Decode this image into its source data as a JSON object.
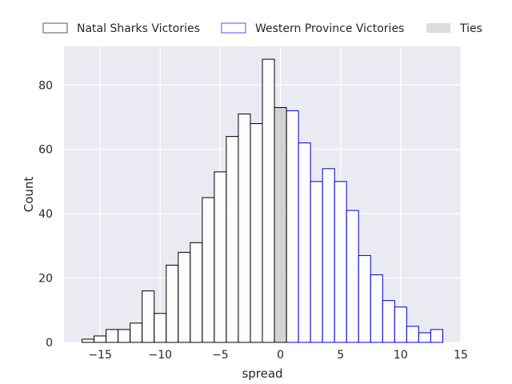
{
  "chart_data": {
    "type": "histogram",
    "xlabel": "spread",
    "ylabel": "Count",
    "xlim": [
      -18,
      15
    ],
    "ylim": [
      0,
      92
    ],
    "x_ticks": [
      -15,
      -10,
      -5,
      0,
      5,
      10,
      15
    ],
    "y_ticks": [
      0,
      20,
      40,
      60,
      80
    ],
    "x_tick_labels": [
      "−15",
      "−10",
      "−5",
      "0",
      "5",
      "10",
      "15"
    ],
    "y_tick_labels": [
      "0",
      "20",
      "40",
      "60",
      "80"
    ],
    "bin_width": 1,
    "grid": true,
    "legend_position": "top",
    "colors": {
      "background": "#EAEAF2",
      "grid": "#FFFFFF",
      "natal_edge": "#000000",
      "natal_fill": "#FFFFFF",
      "western_edge": "#0000CC",
      "western_fill": "#FFFFFF",
      "ties_fill": "#D3D3D3",
      "ties_edge": "#000000",
      "legend_natal_edge": "#555555",
      "legend_western_edge": "#5555EE",
      "legend_ties_fill": "#DDDDDD"
    },
    "series": [
      {
        "name": "Natal Sharks Victories",
        "bins": [
          {
            "x": -16,
            "count": 1
          },
          {
            "x": -15,
            "count": 2
          },
          {
            "x": -14,
            "count": 4
          },
          {
            "x": -13,
            "count": 4
          },
          {
            "x": -12,
            "count": 6
          },
          {
            "x": -11,
            "count": 16
          },
          {
            "x": -10,
            "count": 9
          },
          {
            "x": -9,
            "count": 24
          },
          {
            "x": -8,
            "count": 28
          },
          {
            "x": -7,
            "count": 31
          },
          {
            "x": -6,
            "count": 45
          },
          {
            "x": -5,
            "count": 53
          },
          {
            "x": -4,
            "count": 64
          },
          {
            "x": -3,
            "count": 71
          },
          {
            "x": -2,
            "count": 68
          },
          {
            "x": -1,
            "count": 88
          }
        ]
      },
      {
        "name": "Western Province Victories",
        "bins": [
          {
            "x": 1,
            "count": 72
          },
          {
            "x": 2,
            "count": 62
          },
          {
            "x": 3,
            "count": 50
          },
          {
            "x": 4,
            "count": 54
          },
          {
            "x": 5,
            "count": 50
          },
          {
            "x": 6,
            "count": 41
          },
          {
            "x": 7,
            "count": 27
          },
          {
            "x": 8,
            "count": 21
          },
          {
            "x": 9,
            "count": 13
          },
          {
            "x": 10,
            "count": 11
          },
          {
            "x": 11,
            "count": 5
          },
          {
            "x": 12,
            "count": 3
          },
          {
            "x": 13,
            "count": 4
          }
        ]
      },
      {
        "name": "Ties",
        "bins": [
          {
            "x": 0,
            "count": 73
          }
        ]
      }
    ]
  }
}
